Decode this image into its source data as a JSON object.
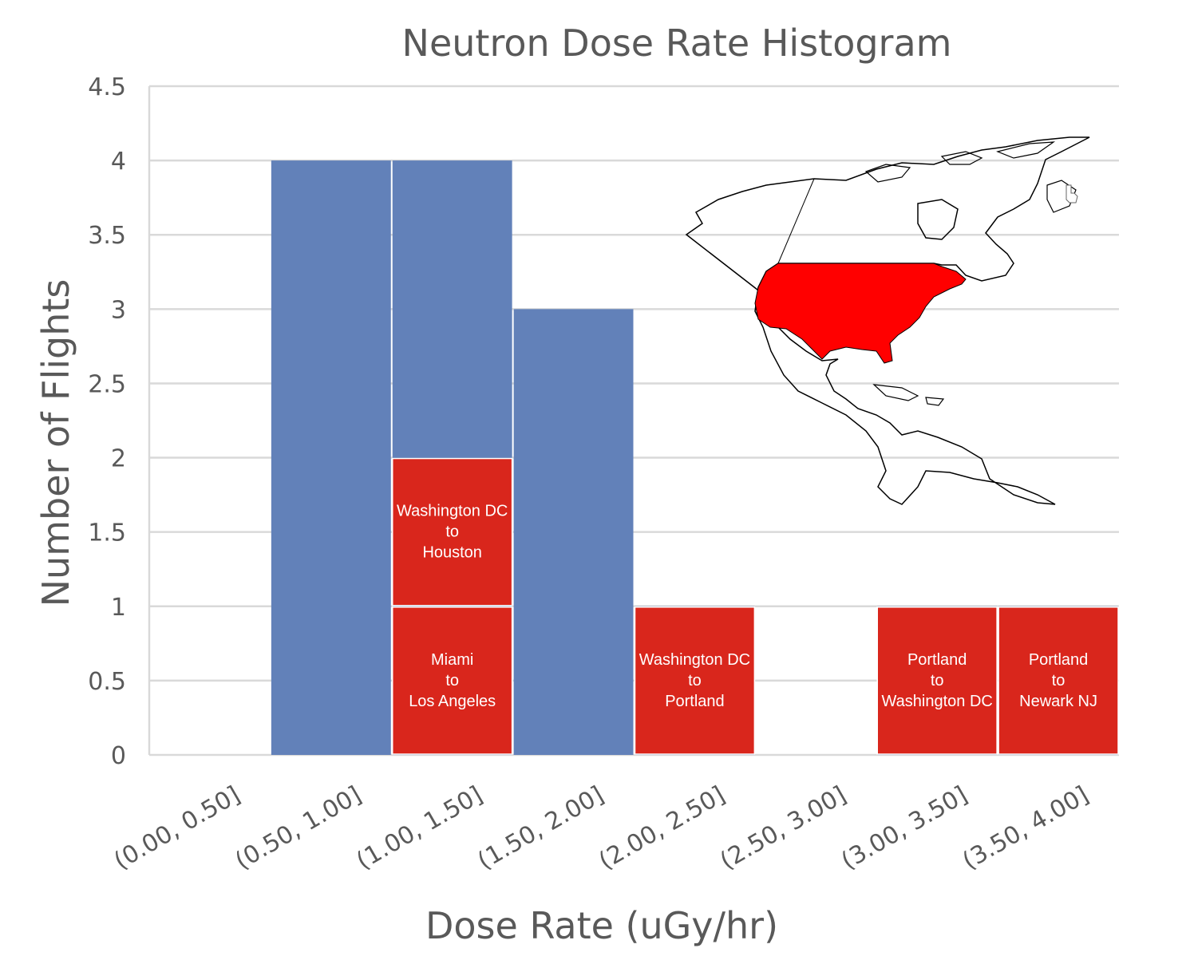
{
  "chart_data": {
    "type": "bar",
    "title": "Neutron Dose Rate Histogram",
    "xlabel": "Dose Rate (uGy/hr)",
    "ylabel": "Number of Flights",
    "categories": [
      "(0.00, 0.50]",
      "(0.50, 1.00]",
      "(1.00, 1.50]",
      "(1.50, 2.00]",
      "(2.00, 2.50]",
      "(2.50, 3.00]",
      "(3.00, 3.50]",
      "(3.50, 4.00]"
    ],
    "values": [
      0,
      4,
      4,
      3,
      1,
      0,
      1,
      1
    ],
    "ylim": [
      0,
      4.5
    ],
    "yticks": [
      "0",
      "0.5",
      "1",
      "1.5",
      "2",
      "2.5",
      "3",
      "3.5",
      "4",
      "4.5"
    ],
    "grid": true,
    "legend": "none",
    "highlighted_flights": [
      {
        "category": "(1.00, 1.50]",
        "from": "Miami",
        "to_word": "to",
        "to": "Los Angeles",
        "stack_level": 0
      },
      {
        "category": "(1.00, 1.50]",
        "from": "Washington DC",
        "to_word": "to",
        "to": "Houston",
        "stack_level": 1
      },
      {
        "category": "(2.00, 2.50]",
        "from": "Washington DC",
        "to_word": "to",
        "to": "Portland",
        "stack_level": 0
      },
      {
        "category": "(3.00, 3.50]",
        "from": "Portland",
        "to_word": "to",
        "to": "Washington DC",
        "stack_level": 0
      },
      {
        "category": "(3.50, 4.00]",
        "from": "Portland",
        "to_word": "to",
        "to": "Newark NJ",
        "stack_level": 0
      }
    ]
  },
  "colors": {
    "bar": "#6281B9",
    "highlight": "#D9261C",
    "map_fill": "#FF0000",
    "grid": "#D9D9D9",
    "text": "#595959"
  },
  "inset": {
    "icon": "north-america-map-icon"
  }
}
